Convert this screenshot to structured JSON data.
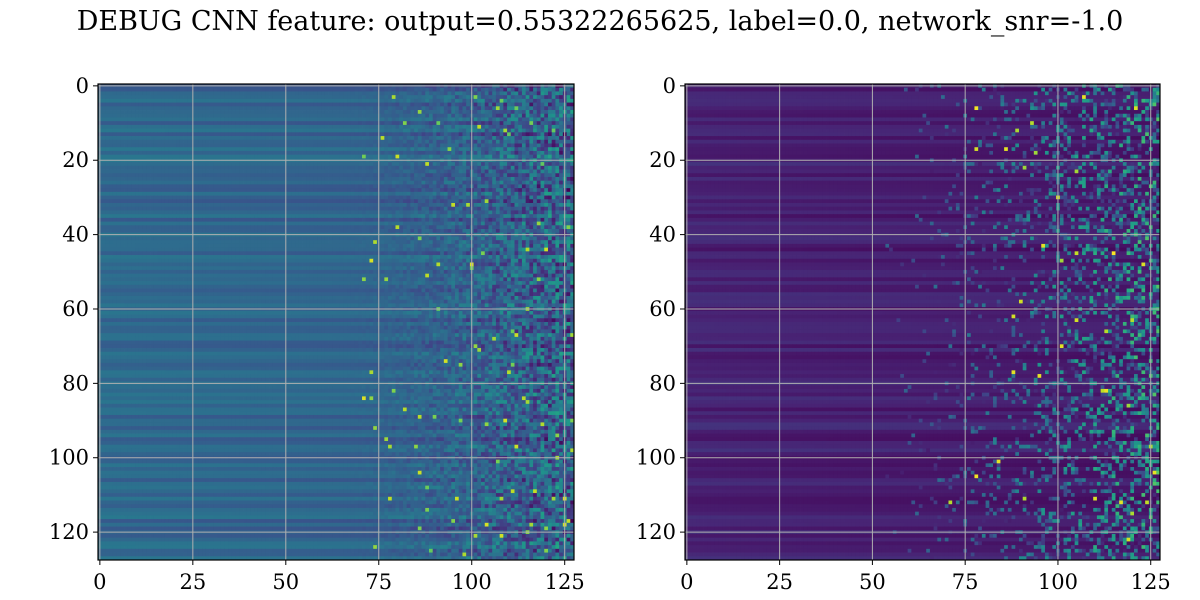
{
  "figure": {
    "title": "DEBUG CNN feature: output=0.55322265625, label=0.0, network_snr=-1.0"
  },
  "chart_data": [
    {
      "type": "heatmap",
      "title": "",
      "xlabel": "",
      "ylabel": "",
      "colormap": "viridis",
      "rows": 128,
      "cols": 128,
      "xlim": [
        0,
        128
      ],
      "ylim": [
        128,
        0
      ],
      "x_ticks": [
        0,
        25,
        50,
        75,
        100,
        125
      ],
      "y_ticks": [
        0,
        20,
        40,
        60,
        80,
        100,
        120
      ],
      "grid": true,
      "grid_color": "#b0b0b0",
      "pattern": "left columns smooth horizontal bands (teal/blue); right columns (x>75) noisy with bright yellow-green speckles",
      "value_range": [
        0.15,
        0.95
      ],
      "base_level": 0.3
    },
    {
      "type": "heatmap",
      "title": "",
      "xlabel": "",
      "ylabel": "",
      "colormap": "viridis",
      "rows": 128,
      "cols": 128,
      "xlim": [
        0,
        128
      ],
      "ylim": [
        128,
        0
      ],
      "x_ticks": [
        0,
        25,
        50,
        75,
        100,
        125
      ],
      "y_ticks": [
        0,
        20,
        40,
        60,
        80,
        100,
        120
      ],
      "grid": true,
      "grid_color": "#b0b0b0",
      "pattern": "mostly dark purple horizontal bands; right columns (x>60) noisy with teal and sparse yellow speckles",
      "value_range": [
        0.0,
        1.0
      ],
      "base_level": 0.08
    }
  ]
}
